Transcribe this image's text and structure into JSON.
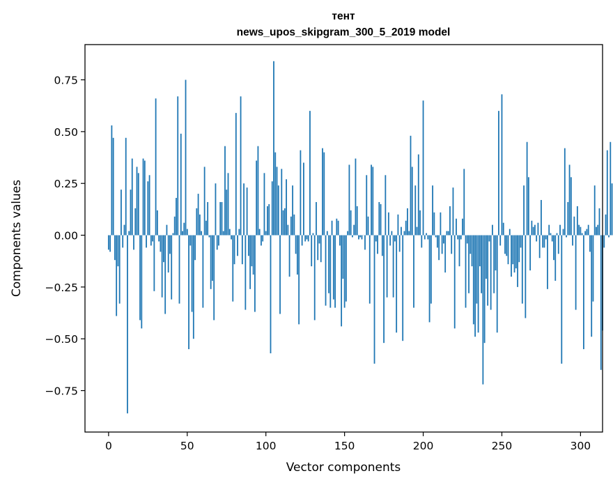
{
  "chart_data": {
    "type": "bar",
    "title": "тент",
    "subtitle": "news_upos_skipgram_300_5_2019 model",
    "xlabel": "Vector components",
    "ylabel": "Components values",
    "xlim": [
      -15,
      314
    ],
    "ylim": [
      -0.95,
      0.92
    ],
    "xticks": [
      0,
      50,
      100,
      150,
      200,
      250,
      300
    ],
    "yticks": [
      -0.75,
      -0.5,
      -0.25,
      0.0,
      0.25,
      0.5,
      0.75
    ],
    "xtick_labels": [
      "0",
      "50",
      "100",
      "150",
      "200",
      "250",
      "300"
    ],
    "ytick_labels": [
      "−0.75",
      "−0.50",
      "−0.25",
      "0.00",
      "0.25",
      "0.50",
      "0.75"
    ],
    "bar_color": "#1f77b4",
    "grid": false,
    "values": [
      -0.07,
      -0.08,
      0.53,
      0.47,
      -0.12,
      -0.39,
      -0.15,
      -0.33,
      0.22,
      -0.06,
      0.05,
      0.47,
      -0.86,
      0.02,
      0.22,
      0.37,
      -0.07,
      0.13,
      0.33,
      0.3,
      -0.41,
      -0.45,
      0.37,
      0.36,
      -0.06,
      0.26,
      0.29,
      -0.05,
      -0.03,
      -0.27,
      0.66,
      0.12,
      -0.03,
      -0.08,
      -0.3,
      -0.13,
      -0.38,
      0.05,
      -0.18,
      -0.09,
      -0.31,
      0.01,
      0.09,
      0.18,
      0.67,
      -0.33,
      0.49,
      0.02,
      0.06,
      0.75,
      0.03,
      -0.55,
      -0.05,
      -0.37,
      -0.5,
      -0.12,
      0.13,
      0.2,
      0.1,
      0.02,
      -0.35,
      0.33,
      0.07,
      0.16,
      -0.01,
      -0.26,
      -0.22,
      -0.41,
      0.25,
      -0.07,
      -0.05,
      0.16,
      0.16,
      0.02,
      0.43,
      0.22,
      0.3,
      0.03,
      -0.02,
      -0.32,
      -0.14,
      0.59,
      -0.1,
      0.03,
      0.67,
      -0.14,
      0.25,
      -0.36,
      0.23,
      -0.1,
      -0.26,
      -0.15,
      -0.19,
      -0.37,
      0.36,
      0.43,
      0.03,
      -0.05,
      -0.03,
      0.3,
      0.02,
      0.14,
      0.15,
      -0.57,
      0.26,
      0.84,
      0.4,
      0.33,
      0.24,
      -0.38,
      0.32,
      0.12,
      0.13,
      0.27,
      0.05,
      -0.2,
      0.09,
      0.24,
      0.1,
      -0.09,
      -0.19,
      -0.43,
      0.41,
      -0.05,
      0.35,
      -0.03,
      -0.02,
      -0.03,
      0.6,
      -0.15,
      0.01,
      -0.41,
      0.16,
      -0.12,
      -0.04,
      -0.13,
      0.42,
      0.4,
      -0.34,
      0.02,
      -0.28,
      -0.35,
      0.07,
      -0.31,
      -0.35,
      0.08,
      0.07,
      -0.05,
      -0.44,
      -0.21,
      -0.35,
      -0.32,
      0.02,
      0.34,
      0.12,
      -0.01,
      0.05,
      0.37,
      0.14,
      -0.02,
      -0.01,
      -0.02,
      0.0,
      -0.07,
      0.29,
      0.09,
      -0.33,
      0.34,
      0.33,
      -0.62,
      -0.03,
      -0.09,
      0.16,
      0.15,
      -0.1,
      -0.52,
      0.29,
      -0.3,
      0.11,
      -0.05,
      0.02,
      -0.3,
      -0.03,
      -0.47,
      0.1,
      -0.08,
      0.04,
      -0.51,
      0.02,
      0.07,
      0.13,
      0.02,
      0.48,
      0.33,
      -0.35,
      0.24,
      0.04,
      0.39,
      0.12,
      -0.06,
      0.65,
      -0.02,
      0.01,
      -0.02,
      -0.42,
      -0.33,
      0.24,
      0.11,
      -0.01,
      -0.06,
      -0.12,
      0.11,
      -0.09,
      -0.04,
      -0.18,
      0.02,
      0.02,
      0.14,
      -0.09,
      0.23,
      -0.45,
      0.08,
      -0.02,
      -0.15,
      -0.02,
      0.08,
      0.32,
      -0.35,
      -0.04,
      -0.28,
      -0.09,
      -0.15,
      -0.43,
      -0.49,
      -0.33,
      -0.47,
      -0.15,
      -0.28,
      -0.72,
      -0.52,
      -0.21,
      -0.34,
      -0.03,
      -0.36,
      0.05,
      -0.28,
      -0.17,
      -0.47,
      0.6,
      -0.05,
      0.68,
      0.06,
      -0.09,
      -0.1,
      -0.14,
      0.03,
      -0.2,
      -0.14,
      -0.18,
      -0.16,
      -0.25,
      -0.13,
      -0.06,
      -0.33,
      0.24,
      -0.4,
      0.45,
      0.28,
      -0.17,
      0.07,
      0.04,
      0.05,
      -0.03,
      0.06,
      -0.11,
      0.17,
      -0.06,
      -0.06,
      -0.02,
      -0.26,
      0.05,
      0.01,
      -0.03,
      -0.12,
      -0.22,
      0.01,
      -0.09,
      0.05,
      -0.62,
      0.03,
      0.42,
      -0.01,
      0.16,
      0.34,
      0.28,
      -0.05,
      0.09,
      -0.36,
      0.14,
      0.05,
      0.04,
      0.01,
      -0.55,
      0.02,
      0.03,
      0.05,
      -0.08,
      -0.49,
      -0.32,
      0.24,
      0.04,
      0.05,
      0.13,
      -0.65,
      -0.46,
      -0.06,
      0.1,
      0.41,
      -0.01,
      0.45,
      0.25
    ]
  }
}
